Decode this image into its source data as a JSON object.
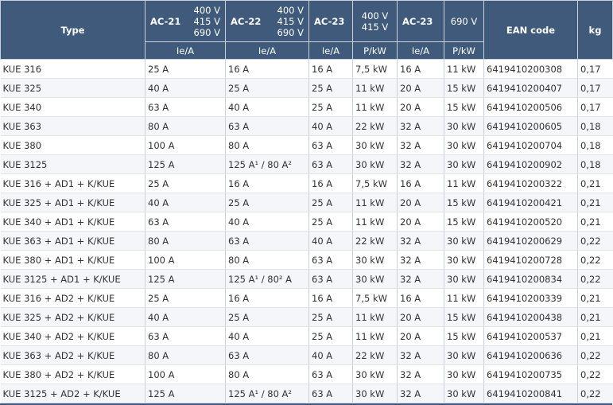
{
  "header": {
    "type": "Type",
    "ac21": "AC-21",
    "ac22": "AC-22",
    "ac23": "AC-23",
    "ac23b": "AC-23",
    "v400": "400 V",
    "v415": "415 V",
    "v690": "690 V",
    "ean": "EAN code",
    "kg": "kg",
    "unit_ie": "Ie/A",
    "unit_p": "P/kW"
  },
  "rows": [
    {
      "type": "KUE 316",
      "ac21": "25 A",
      "ac22": "16 A",
      "ac23": "16 A",
      "p400": "7,5 kW",
      "ac23b": "16 A",
      "p690": "11 kW",
      "ean": "6419410200308",
      "kg": "0,17"
    },
    {
      "type": "KUE 325",
      "ac21": "40 A",
      "ac22": "25 A",
      "ac23": "25 A",
      "p400": "11 kW",
      "ac23b": "20 A",
      "p690": "15 kW",
      "ean": "6419410200407",
      "kg": "0,17"
    },
    {
      "type": "KUE 340",
      "ac21": "63 A",
      "ac22": "40 A",
      "ac23": "25 A",
      "p400": "11 kW",
      "ac23b": "20 A",
      "p690": "15 kW",
      "ean": "6419410200506",
      "kg": "0,17"
    },
    {
      "type": "KUE 363",
      "ac21": "80 A",
      "ac22": "63 A",
      "ac23": "40 A",
      "p400": "22 kW",
      "ac23b": "32 A",
      "p690": "30 kW",
      "ean": "6419410200605",
      "kg": "0,18"
    },
    {
      "type": "KUE 380",
      "ac21": "100 A",
      "ac22": "80 A",
      "ac23": "63 A",
      "p400": "30 kW",
      "ac23b": "32 A",
      "p690": "30 kW",
      "ean": "6419410200704",
      "kg": "0,18"
    },
    {
      "type": "KUE 3125",
      "ac21": "125 A",
      "ac22": "125 A¹ / 80 A²",
      "ac23": "63 A",
      "p400": "30 kW",
      "ac23b": "32 A",
      "p690": "30 kW",
      "ean": "6419410200902",
      "kg": "0,18"
    },
    {
      "type": "KUE 316 + AD1 + K/KUE",
      "ac21": "25 A",
      "ac22": "16 A",
      "ac23": "16 A",
      "p400": "7,5 kW",
      "ac23b": "16 A",
      "p690": "11 kW",
      "ean": "6419410200322",
      "kg": "0,21"
    },
    {
      "type": "KUE 325 + AD1 + K/KUE",
      "ac21": "40 A",
      "ac22": "25 A",
      "ac23": "25 A",
      "p400": "11 kW",
      "ac23b": "20 A",
      "p690": "15 kW",
      "ean": "6419410200421",
      "kg": "0,21"
    },
    {
      "type": "KUE 340 + AD1 + K/KUE",
      "ac21": "63 A",
      "ac22": "40 A",
      "ac23": "25 A",
      "p400": "11 kW",
      "ac23b": "20 A",
      "p690": "15 kW",
      "ean": "6419410200520",
      "kg": "0,21"
    },
    {
      "type": "KUE 363 + AD1 + K/KUE",
      "ac21": "80 A",
      "ac22": "63 A",
      "ac23": "40 A",
      "p400": "22 kW",
      "ac23b": "32 A",
      "p690": "30 kW",
      "ean": "6419410200629",
      "kg": "0,22"
    },
    {
      "type": "KUE 380 + AD1 + K/KUE",
      "ac21": "100 A",
      "ac22": "80 A",
      "ac23": "63 A",
      "p400": "30 kW",
      "ac23b": "32 A",
      "p690": "30 kW",
      "ean": "6419410200728",
      "kg": "0,22"
    },
    {
      "type": "KUE 3125 + AD1 + K/KUE",
      "ac21": "125 A",
      "ac22": "125 A¹ / 80² A",
      "ac23": "63 A",
      "p400": "30 kW",
      "ac23b": "32 A",
      "p690": "30 kW",
      "ean": "6419410200834",
      "kg": "0,22"
    },
    {
      "type": "KUE 316 + AD2 + K/KUE",
      "ac21": "25 A",
      "ac22": "16 A",
      "ac23": "16 A",
      "p400": "7,5 kW",
      "ac23b": "16 A",
      "p690": "11 kW",
      "ean": "6419410200339",
      "kg": "0,21"
    },
    {
      "type": "KUE 325 + AD2 + K/KUE",
      "ac21": "40 A",
      "ac22": "25 A",
      "ac23": "25 A",
      "p400": "11 kW",
      "ac23b": "20 A",
      "p690": "15 kW",
      "ean": "6419410200438",
      "kg": "0,21"
    },
    {
      "type": "KUE 340 + AD2 + K/KUE",
      "ac21": "63 A",
      "ac22": "40 A",
      "ac23": "25 A",
      "p400": "11 kW",
      "ac23b": "20 A",
      "p690": "15 kW",
      "ean": "6419410200537",
      "kg": "0,21"
    },
    {
      "type": "KUE 363 + AD2 + K/KUE",
      "ac21": "80 A",
      "ac22": "63 A",
      "ac23": "40 A",
      "p400": "22 kW",
      "ac23b": "32 A",
      "p690": "30 kW",
      "ean": "6419410200636",
      "kg": "0,22"
    },
    {
      "type": "KUE 380 + AD2 + K/KUE",
      "ac21": "100 A",
      "ac22": "80 A",
      "ac23": "63 A",
      "p400": "30 kW",
      "ac23b": "32 A",
      "p690": "30 kW",
      "ean": "6419410200735",
      "kg": "0,22"
    },
    {
      "type": "KUE 3125 + AD2 + K/KUE",
      "ac21": "125 A",
      "ac22": "125 A¹ / 80 A²",
      "ac23": "63 A",
      "p400": "30 kW",
      "ac23b": "32 A",
      "p690": "30 kW",
      "ean": "6419410200841",
      "kg": "0,22"
    }
  ]
}
